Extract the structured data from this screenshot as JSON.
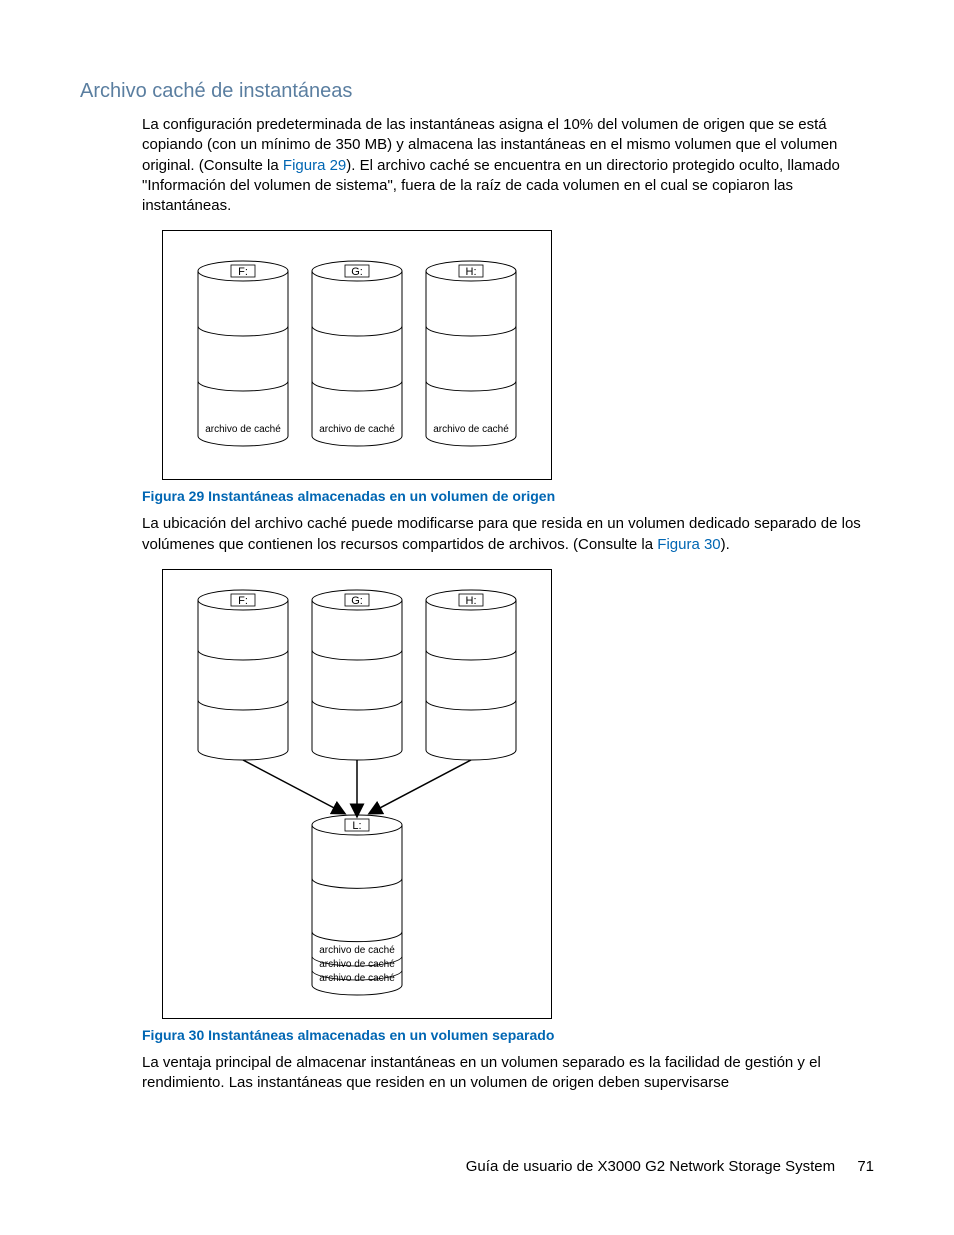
{
  "colors": {
    "heading": "#5a7ea0",
    "link": "#0066b3",
    "caption": "#0066b3",
    "text": "#000000",
    "stroke": "#000000",
    "bg": "#ffffff"
  },
  "heading": "Archivo caché de instantáneas",
  "para1_a": "La configuración predeterminada de las instantáneas asigna el 10% del volumen de origen que se está copiando (con un mínimo de 350 MB) y almacena las instantáneas en el mismo volumen que el volumen original. (Consulte la ",
  "para1_link": "Figura 29",
  "para1_b": "). El archivo caché se encuentra en un directorio protegido oculto, llamado \"Información del volumen de sistema\", fuera de la raíz de cada volumen en el cual se copiaron las instantáneas.",
  "fig29": {
    "caption": "Figura 29 Instantáneas almacenadas en un volumen de origen",
    "drives": [
      "F:",
      "G:",
      "H:"
    ],
    "cache_label": "archivo de caché"
  },
  "para2_a": "La ubicación del archivo caché puede modificarse para que resida en un volumen dedicado separado de los volúmenes que contienen los recursos compartidos de archivos. (Consulte la ",
  "para2_link": "Figura 30",
  "para2_b": ").",
  "fig30": {
    "caption": "Figura 30 Instantáneas almacenadas en un volumen separado",
    "drives": [
      "F:",
      "G:",
      "H:"
    ],
    "target_drive": "L:",
    "cache_label": "archivo de caché"
  },
  "para3": "La ventaja principal de almacenar instantáneas en un volumen separado es la facilidad de gestión y el rendimiento. Las instantáneas que residen en un volumen de origen deben supervisarse",
  "footer_text": "Guía de usuario de X3000 G2 Network Storage System",
  "page_number": "71"
}
